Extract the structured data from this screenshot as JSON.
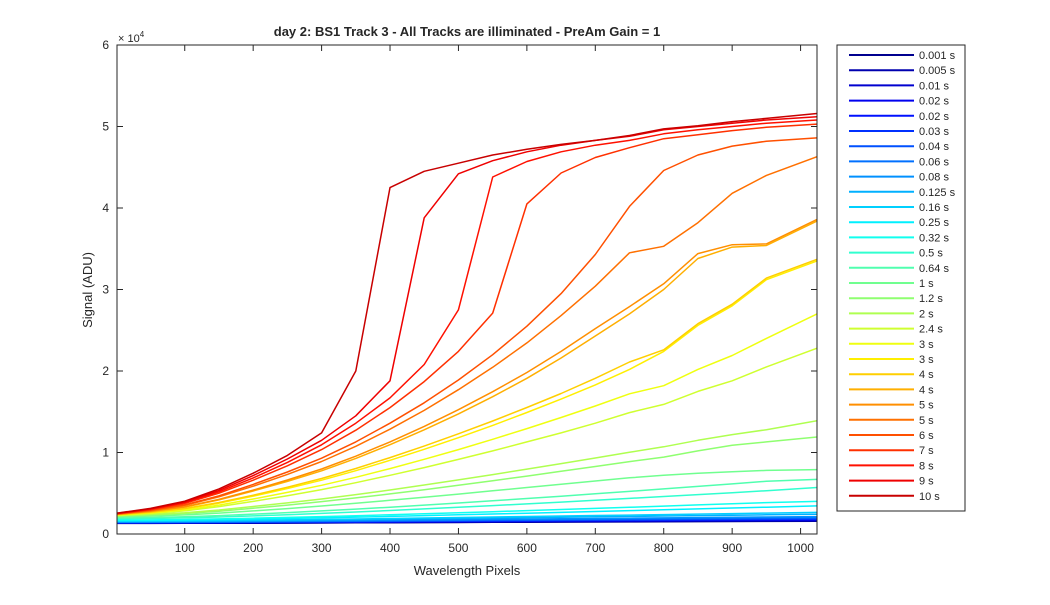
{
  "chart_data": {
    "type": "line",
    "title": "day 2: BS1  Track 3 - All Tracks are illiminated - PreAm Gain = 1",
    "xlabel": "Wavelength Pixels",
    "ylabel": "Signal (ADU)",
    "y_exponent_label": "× 10",
    "y_exponent_power": "4",
    "xlim": [
      1,
      1024
    ],
    "ylim": [
      0,
      60000
    ],
    "x_ticks": [
      100,
      200,
      300,
      400,
      500,
      600,
      700,
      800,
      900,
      1000
    ],
    "y_ticks": [
      0,
      10000,
      20000,
      30000,
      40000,
      50000,
      60000
    ],
    "y_tick_labels": [
      "0",
      "1",
      "2",
      "3",
      "4",
      "5",
      "6"
    ],
    "grid": false,
    "legend_position": "outside-right",
    "x": [
      1,
      50,
      100,
      150,
      200,
      250,
      300,
      350,
      400,
      450,
      500,
      550,
      600,
      650,
      700,
      750,
      800,
      850,
      900,
      950,
      1024
    ],
    "series": [
      {
        "name": "0.001 s",
        "color": "#00008f",
        "values": [
          1300,
          1305,
          1310,
          1320,
          1330,
          1340,
          1355,
          1370,
          1385,
          1400,
          1415,
          1430,
          1445,
          1460,
          1475,
          1490,
          1505,
          1520,
          1535,
          1550,
          1565
        ]
      },
      {
        "name": "0.005 s",
        "color": "#0000af",
        "values": [
          1320,
          1325,
          1332,
          1342,
          1355,
          1368,
          1383,
          1400,
          1417,
          1433,
          1450,
          1466,
          1482,
          1498,
          1514,
          1530,
          1546,
          1562,
          1578,
          1594,
          1610
        ]
      },
      {
        "name": "0.01 s",
        "color": "#0000cf",
        "values": [
          1340,
          1346,
          1354,
          1366,
          1381,
          1396,
          1413,
          1432,
          1451,
          1470,
          1489,
          1507,
          1525,
          1543,
          1561,
          1579,
          1597,
          1615,
          1633,
          1651,
          1670
        ]
      },
      {
        "name": "0.02 s",
        "color": "#0000ef",
        "values": [
          1360,
          1367,
          1376,
          1390,
          1407,
          1425,
          1445,
          1466,
          1488,
          1510,
          1532,
          1553,
          1574,
          1595,
          1616,
          1637,
          1658,
          1679,
          1700,
          1721,
          1745
        ]
      },
      {
        "name": "0.02 s",
        "color": "#0010ff",
        "values": [
          1375,
          1382,
          1392,
          1407,
          1425,
          1444,
          1465,
          1488,
          1511,
          1534,
          1557,
          1580,
          1602,
          1624,
          1646,
          1668,
          1690,
          1712,
          1734,
          1756,
          1780
        ]
      },
      {
        "name": "0.03 s",
        "color": "#0030ff",
        "values": [
          1390,
          1398,
          1409,
          1425,
          1445,
          1466,
          1489,
          1514,
          1539,
          1564,
          1589,
          1614,
          1638,
          1662,
          1686,
          1710,
          1734,
          1758,
          1782,
          1806,
          1835
        ]
      },
      {
        "name": "0.04 s",
        "color": "#0050ff",
        "values": [
          1410,
          1419,
          1431,
          1449,
          1471,
          1494,
          1519,
          1546,
          1574,
          1602,
          1630,
          1657,
          1684,
          1711,
          1738,
          1765,
          1792,
          1819,
          1846,
          1873,
          1905
        ]
      },
      {
        "name": "0.06 s",
        "color": "#0070ff",
        "values": [
          1440,
          1450,
          1464,
          1485,
          1510,
          1537,
          1566,
          1597,
          1629,
          1661,
          1693,
          1725,
          1756,
          1787,
          1818,
          1849,
          1880,
          1911,
          1942,
          1973,
          2010
        ]
      },
      {
        "name": "0.08 s",
        "color": "#0090ff",
        "values": [
          1470,
          1482,
          1498,
          1522,
          1551,
          1582,
          1615,
          1651,
          1688,
          1725,
          1762,
          1799,
          1835,
          1871,
          1907,
          1943,
          1979,
          2015,
          2051,
          2087,
          2130
        ]
      },
      {
        "name": "0.125 s",
        "color": "#00b0ff",
        "values": [
          1520,
          1536,
          1557,
          1589,
          1628,
          1669,
          1713,
          1761,
          1810,
          1860,
          1910,
          1960,
          2010,
          2060,
          2110,
          2160,
          2210,
          2260,
          2310,
          2360,
          2420
        ]
      },
      {
        "name": "0.16 s",
        "color": "#00d0ff",
        "values": [
          1560,
          1579,
          1604,
          1642,
          1688,
          1737,
          1789,
          1846,
          1905,
          1965,
          2025,
          2085,
          2145,
          2205,
          2265,
          2325,
          2385,
          2445,
          2505,
          2565,
          2650
        ]
      },
      {
        "name": "0.25 s",
        "color": "#00f0ff",
        "values": [
          1640,
          1669,
          1706,
          1763,
          1832,
          1906,
          1985,
          2070,
          2160,
          2255,
          2352,
          2452,
          2553,
          2656,
          2760,
          2866,
          2972,
          3079,
          3186,
          3293,
          3450
        ]
      },
      {
        "name": "0.32 s",
        "color": "#10ffef",
        "values": [
          1700,
          1736,
          1783,
          1855,
          1942,
          2036,
          2136,
          2245,
          2360,
          2481,
          2606,
          2735,
          2867,
          3002,
          3140,
          3280,
          3422,
          3565,
          3709,
          3853,
          4000
        ]
      },
      {
        "name": "0.5 s",
        "color": "#30ffcf",
        "values": [
          1850,
          1905,
          1978,
          2090,
          2226,
          2373,
          2530,
          2700,
          2883,
          3075,
          3275,
          3482,
          3695,
          3914,
          4137,
          4365,
          4597,
          4832,
          5070,
          5310,
          5700
        ]
      },
      {
        "name": "0.64 s",
        "color": "#50ffaf",
        "values": [
          1950,
          2020,
          2115,
          2260,
          2437,
          2628,
          2832,
          3054,
          3292,
          3543,
          3804,
          4074,
          4352,
          4638,
          4930,
          5228,
          5531,
          5839,
          6151,
          6466,
          6700
        ]
      },
      {
        "name": "1 s",
        "color": "#70ff8f",
        "values": [
          2100,
          2200,
          2340,
          2560,
          2830,
          3120,
          3430,
          3770,
          4130,
          4510,
          4900,
          5300,
          5700,
          6100,
          6500,
          6900,
          7200,
          7450,
          7650,
          7800,
          7900
        ]
      },
      {
        "name": "1.2 s",
        "color": "#8fff70",
        "values": [
          2200,
          2330,
          2510,
          2800,
          3160,
          3550,
          3970,
          4430,
          4920,
          5440,
          5980,
          6540,
          7110,
          7690,
          8280,
          8880,
          9440,
          10200,
          10900,
          11300,
          11900
        ]
      },
      {
        "name": "2 s",
        "color": "#afff50",
        "values": [
          2250,
          2400,
          2610,
          2950,
          3370,
          3820,
          4300,
          4830,
          5400,
          6010,
          6640,
          7290,
          7960,
          8640,
          9330,
          10030,
          10700,
          11500,
          12200,
          12800,
          13900
        ]
      },
      {
        "name": "2.4 s",
        "color": "#cfff30",
        "values": [
          2300,
          2520,
          2840,
          3360,
          4000,
          4700,
          5450,
          6300,
          7200,
          8150,
          9150,
          10200,
          11300,
          12400,
          13600,
          14900,
          15900,
          17500,
          18800,
          20500,
          22800
        ]
      },
      {
        "name": "3 s",
        "color": "#efff10",
        "values": [
          2330,
          2580,
          2950,
          3550,
          4290,
          5100,
          5970,
          6960,
          8030,
          9160,
          10360,
          11620,
          12930,
          14290,
          15700,
          17200,
          18200,
          20200,
          21900,
          24000,
          27000
        ]
      },
      {
        "name": "3 s",
        "color": "#ffef00",
        "values": [
          2360,
          2650,
          3080,
          3780,
          4640,
          5580,
          6600,
          7770,
          9040,
          10390,
          11820,
          13330,
          14910,
          16550,
          18300,
          20200,
          22400,
          25600,
          28000,
          31200,
          33500
        ]
      },
      {
        "name": "4 s",
        "color": "#ffcf00",
        "values": [
          2380,
          2680,
          3130,
          3860,
          4760,
          5740,
          6810,
          8040,
          9370,
          10790,
          12290,
          13870,
          15520,
          17240,
          19100,
          21100,
          22600,
          25800,
          28200,
          31400,
          33700
        ]
      },
      {
        "name": "4 s",
        "color": "#ffaf00",
        "values": [
          2400,
          2760,
          3300,
          4180,
          5270,
          6460,
          7760,
          9280,
          10960,
          12780,
          14740,
          16850,
          19100,
          21600,
          24300,
          27000,
          30000,
          33800,
          35200,
          35400,
          38400
        ]
      },
      {
        "name": "5 s",
        "color": "#ff8f00",
        "values": [
          2420,
          2790,
          3350,
          4260,
          5390,
          6620,
          7970,
          9550,
          11300,
          13200,
          15250,
          17460,
          19820,
          22400,
          25200,
          27900,
          30700,
          34400,
          35500,
          35600,
          38600
        ]
      },
      {
        "name": "5 s",
        "color": "#ff7000",
        "values": [
          2450,
          2870,
          3510,
          4560,
          5870,
          7310,
          8890,
          10760,
          12860,
          15170,
          17700,
          20450,
          23450,
          26800,
          30400,
          34500,
          35300,
          38200,
          41800,
          44000,
          46300
        ]
      },
      {
        "name": "6 s",
        "color": "#ff5000",
        "values": [
          2470,
          2910,
          3580,
          4690,
          6080,
          7610,
          9300,
          11300,
          13600,
          16100,
          18900,
          22000,
          25500,
          29500,
          34300,
          40200,
          44600,
          46500,
          47600,
          48200,
          48600
        ]
      },
      {
        "name": "7 s",
        "color": "#ff3000",
        "values": [
          2500,
          2990,
          3750,
          5010,
          6600,
          8370,
          10360,
          12740,
          15510,
          18700,
          22400,
          27100,
          40500,
          44300,
          46200,
          47400,
          48500,
          49000,
          49500,
          49900,
          50300
        ]
      },
      {
        "name": "8 s",
        "color": "#ff1000",
        "values": [
          2520,
          3040,
          3840,
          5180,
          6880,
          8780,
          10950,
          13600,
          16700,
          20800,
          27500,
          43800,
          45700,
          46900,
          47700,
          48300,
          49100,
          49600,
          50000,
          50400,
          50800
        ]
      },
      {
        "name": "9 s",
        "color": "#ef0000",
        "values": [
          2540,
          3090,
          3930,
          5350,
          7160,
          9200,
          11500,
          14500,
          18800,
          38800,
          44200,
          45800,
          46900,
          47700,
          48300,
          48800,
          49600,
          50000,
          50400,
          50800,
          51200
        ]
      },
      {
        "name": "10 s",
        "color": "#c80000",
        "values": [
          2560,
          3140,
          4030,
          5530,
          7460,
          9640,
          12400,
          20000,
          42500,
          44500,
          45500,
          46500,
          47200,
          47800,
          48300,
          48900,
          49700,
          50100,
          50600,
          51000,
          51600
        ]
      }
    ]
  }
}
